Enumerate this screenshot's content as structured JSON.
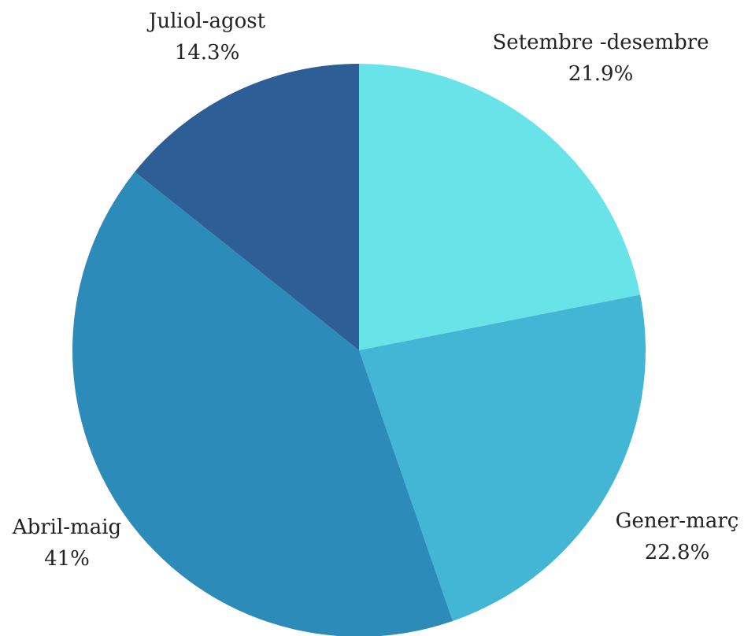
{
  "chart_data": {
    "type": "pie",
    "title": "",
    "slices": [
      {
        "label": "Setembre -desembre",
        "value": 21.9,
        "display": "21.9%",
        "color": "#68E3E8"
      },
      {
        "label": "Gener-març",
        "value": 22.8,
        "display": "22.8%",
        "color": "#43B6D6"
      },
      {
        "label": "Abril-maig",
        "value": 41,
        "display": "41%",
        "color": "#2D8BBA"
      },
      {
        "label": "Juliol-agost",
        "value": 14.3,
        "display": "14.3%",
        "color": "#2E5E96"
      }
    ]
  }
}
